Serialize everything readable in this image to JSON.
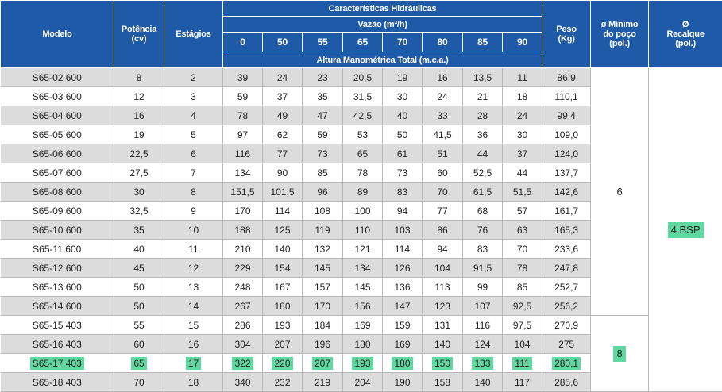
{
  "header": {
    "modelo": "Modelo",
    "potencia": "Potência\n(cv)",
    "estagios": "Estágios",
    "caracteristicas": "Características Hidráulicas",
    "vazao": "Vazão (m³/h)",
    "flows": [
      "0",
      "50",
      "55",
      "65",
      "70",
      "80",
      "85",
      "90"
    ],
    "altura": "Altura Manométrica Total (m.c.a.)",
    "peso": "Peso\n(Kg)",
    "diam_poco": "ø Mínimo\ndo poço\n(pol.)",
    "diam_recalque": "Ø\nRecalque\n(pol.)"
  },
  "rows": [
    {
      "modelo": "S65-02 600",
      "potencia": "8",
      "estagios": "2",
      "heads": [
        "39",
        "24",
        "23",
        "20,5",
        "19",
        "16",
        "13,5",
        "11"
      ],
      "peso": "86,9"
    },
    {
      "modelo": "S65-03 600",
      "potencia": "12",
      "estagios": "3",
      "heads": [
        "59",
        "37",
        "35",
        "31,5",
        "30",
        "24",
        "21",
        "18"
      ],
      "peso": "110,1"
    },
    {
      "modelo": "S65-04 600",
      "potencia": "16",
      "estagios": "4",
      "heads": [
        "78",
        "49",
        "47",
        "42,5",
        "40",
        "33",
        "28",
        "24"
      ],
      "peso": "99,4"
    },
    {
      "modelo": "S65-05 600",
      "potencia": "19",
      "estagios": "5",
      "heads": [
        "97",
        "62",
        "59",
        "53",
        "50",
        "41,5",
        "36",
        "30"
      ],
      "peso": "109,0"
    },
    {
      "modelo": "S65-06 600",
      "potencia": "22,5",
      "estagios": "6",
      "heads": [
        "116",
        "77",
        "73",
        "65",
        "61",
        "51",
        "44",
        "37"
      ],
      "peso": "124,0"
    },
    {
      "modelo": "S65-07 600",
      "potencia": "27,5",
      "estagios": "7",
      "heads": [
        "134",
        "90",
        "85",
        "78",
        "73",
        "60",
        "52,5",
        "44"
      ],
      "peso": "137,7"
    },
    {
      "modelo": "S65-08 600",
      "potencia": "30",
      "estagios": "8",
      "heads": [
        "151,5",
        "101,5",
        "96",
        "89",
        "83",
        "70",
        "61,5",
        "51,5"
      ],
      "peso": "142,6"
    },
    {
      "modelo": "S65-09 600",
      "potencia": "32,5",
      "estagios": "9",
      "heads": [
        "170",
        "114",
        "108",
        "100",
        "94",
        "77",
        "68",
        "57"
      ],
      "peso": "161,7"
    },
    {
      "modelo": "S65-10 600",
      "potencia": "35",
      "estagios": "10",
      "heads": [
        "188",
        "125",
        "119",
        "110",
        "103",
        "86",
        "76",
        "63"
      ],
      "peso": "165,3"
    },
    {
      "modelo": "S65-11 600",
      "potencia": "40",
      "estagios": "11",
      "heads": [
        "210",
        "140",
        "132",
        "121",
        "114",
        "94",
        "83",
        "70"
      ],
      "peso": "233,6"
    },
    {
      "modelo": "S65-12 600",
      "potencia": "45",
      "estagios": "12",
      "heads": [
        "229",
        "154",
        "145",
        "134",
        "126",
        "104",
        "91,5",
        "78"
      ],
      "peso": "247,8"
    },
    {
      "modelo": "S65-13 600",
      "potencia": "50",
      "estagios": "13",
      "heads": [
        "248",
        "167",
        "157",
        "145",
        "136",
        "113",
        "99",
        "85"
      ],
      "peso": "252,7"
    },
    {
      "modelo": "S65-14 600",
      "potencia": "50",
      "estagios": "14",
      "heads": [
        "267",
        "180",
        "170",
        "156",
        "147",
        "123",
        "107",
        "92,5"
      ],
      "peso": "256,2"
    },
    {
      "modelo": "S65-15 403",
      "potencia": "55",
      "estagios": "15",
      "heads": [
        "286",
        "193",
        "184",
        "169",
        "159",
        "131",
        "116",
        "97,5"
      ],
      "peso": "270,9"
    },
    {
      "modelo": "S65-16 403",
      "potencia": "60",
      "estagios": "16",
      "heads": [
        "304",
        "207",
        "196",
        "180",
        "169",
        "140",
        "124",
        "104"
      ],
      "peso": "275"
    },
    {
      "modelo": "S65-17 403",
      "potencia": "65",
      "estagios": "17",
      "heads": [
        "322",
        "220",
        "207",
        "193",
        "180",
        "150",
        "133",
        "111"
      ],
      "peso": "280,1",
      "highlighted": true
    },
    {
      "modelo": "S65-18 403",
      "potencia": "70",
      "estagios": "18",
      "heads": [
        "340",
        "232",
        "219",
        "204",
        "190",
        "158",
        "140",
        "117"
      ],
      "peso": "285,6"
    }
  ],
  "merged": {
    "poco_group_a": "6",
    "poco_group_b": "8",
    "recalque": "4  BSP"
  },
  "colors": {
    "header_bg": "#1f5aa8",
    "row_gray": "#dcdcdc",
    "highlight": "#5fd9a0"
  }
}
